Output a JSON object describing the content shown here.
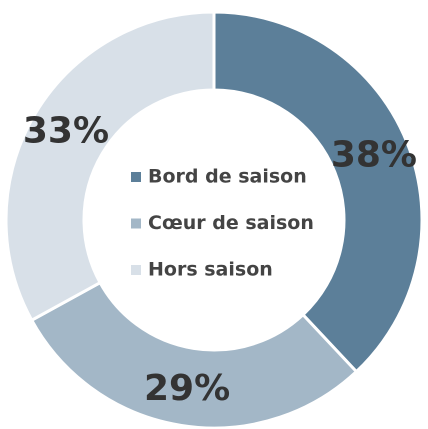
{
  "chart_data": {
    "type": "donut",
    "categories": [
      "Bord de saison",
      "Cœur de saison",
      "Hors saison"
    ],
    "values": [
      38,
      29,
      33
    ],
    "value_labels": [
      "38%",
      "29%",
      "33%"
    ],
    "colors": [
      "#5c7f99",
      "#a3b7c7",
      "#d8e0e8"
    ],
    "legend": "center"
  }
}
